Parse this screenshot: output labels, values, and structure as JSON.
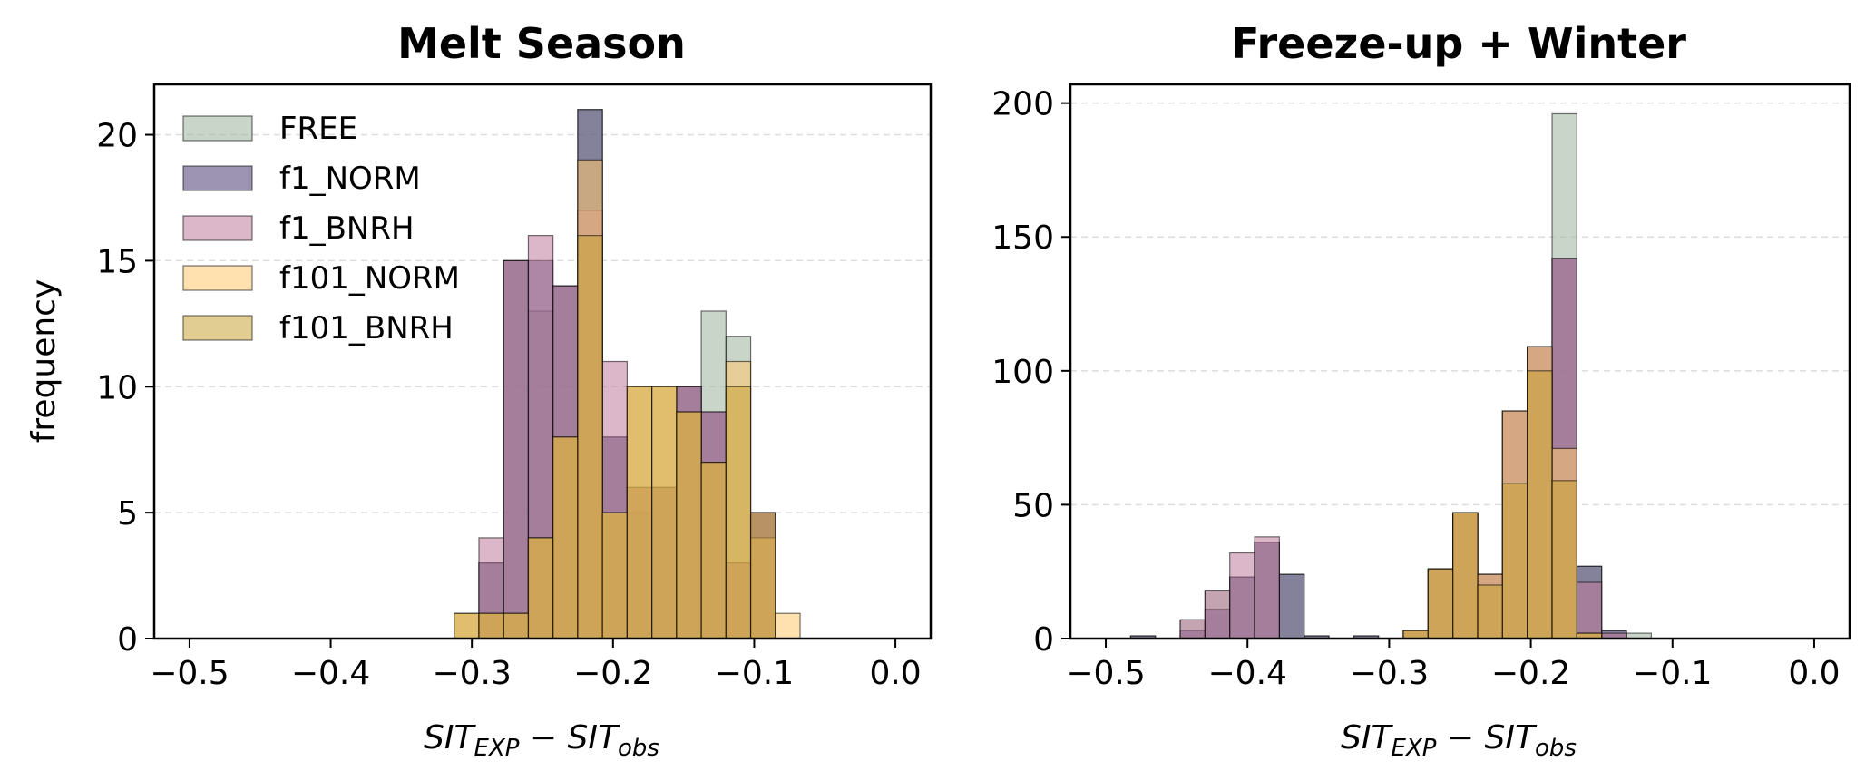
{
  "chart_data": [
    {
      "type": "bar",
      "title": "Melt Season",
      "ylabel": "frequency",
      "xlabel": "SIT_EXP − SIT_obs",
      "xlim": [
        -0.525,
        0.025
      ],
      "ylim": [
        0,
        22
      ],
      "xticks": [
        -0.5,
        -0.4,
        -0.3,
        -0.2,
        -0.1,
        0.0
      ],
      "xtick_labels": [
        "−0.5",
        "−0.4",
        "−0.3",
        "−0.2",
        "−0.1",
        "0.0"
      ],
      "yticks": [
        0,
        5,
        10,
        15,
        20
      ],
      "ytick_labels": [
        "0",
        "5",
        "10",
        "15",
        "20"
      ],
      "grid": "y-dashed",
      "legend": "top-left",
      "bin_width": 0.0175,
      "bin_starts": [
        -0.3125,
        -0.295,
        -0.2775,
        -0.26,
        -0.2425,
        -0.225,
        -0.2075,
        -0.19,
        -0.1725,
        -0.155,
        -0.1375,
        -0.12,
        -0.1025,
        -0.085
      ],
      "series": [
        {
          "name": "FREE",
          "color": "#9fb39f",
          "values": [
            0,
            3,
            15,
            13,
            14,
            21,
            8,
            5,
            6,
            10,
            13,
            12,
            5,
            0
          ]
        },
        {
          "name": "f1_NORM",
          "color": "#4a3d73",
          "values": [
            0,
            3,
            15,
            15,
            14,
            21,
            8,
            6,
            6,
            10,
            9,
            3,
            5,
            0
          ]
        },
        {
          "name": "f1_BNRH",
          "color": "#c07b9d",
          "values": [
            0,
            4,
            15,
            16,
            14,
            17,
            11,
            6,
            6,
            10,
            9,
            3,
            5,
            0
          ]
        },
        {
          "name": "f101_NORM",
          "color": "#ffc870",
          "values": [
            1,
            1,
            1,
            4,
            8,
            19,
            5,
            10,
            10,
            9,
            7,
            11,
            4,
            1
          ]
        },
        {
          "name": "f101_BNRH",
          "color": "#c8a336",
          "values": [
            1,
            1,
            1,
            4,
            8,
            16,
            5,
            10,
            10,
            9,
            7,
            10,
            5,
            0
          ]
        }
      ]
    },
    {
      "type": "bar",
      "title": "Freeze-up + Winter",
      "ylabel": "",
      "xlabel": "SIT_EXP − SIT_obs",
      "xlim": [
        -0.525,
        0.025
      ],
      "ylim": [
        0,
        207
      ],
      "xticks": [
        -0.5,
        -0.4,
        -0.3,
        -0.2,
        -0.1,
        0.0
      ],
      "xtick_labels": [
        "−0.5",
        "−0.4",
        "−0.3",
        "−0.2",
        "−0.1",
        "0.0"
      ],
      "yticks": [
        0,
        50,
        100,
        150,
        200
      ],
      "ytick_labels": [
        "0",
        "50",
        "100",
        "150",
        "200"
      ],
      "grid": "y-dashed",
      "bin_width": 0.0175,
      "bin_starts": [
        -0.4825,
        -0.465,
        -0.4475,
        -0.43,
        -0.4125,
        -0.395,
        -0.3775,
        -0.36,
        -0.3425,
        -0.325,
        -0.3075,
        -0.29,
        -0.2725,
        -0.255,
        -0.2375,
        -0.22,
        -0.2025,
        -0.185,
        -0.1675,
        -0.15,
        -0.1325
      ],
      "series": [
        {
          "name": "FREE",
          "color": "#9fb39f",
          "values": [
            1,
            0,
            7,
            18,
            23,
            36,
            24,
            1,
            0,
            1,
            0,
            3,
            26,
            47,
            24,
            85,
            109,
            196,
            27,
            3,
            2
          ]
        },
        {
          "name": "f1_NORM",
          "color": "#4a3d73",
          "values": [
            1,
            0,
            3,
            11,
            23,
            36,
            24,
            1,
            0,
            1,
            0,
            3,
            26,
            47,
            24,
            85,
            109,
            142,
            27,
            3,
            0
          ]
        },
        {
          "name": "f1_BNRH",
          "color": "#c07b9d",
          "values": [
            0,
            0,
            7,
            18,
            32,
            38,
            0,
            0,
            0,
            0,
            0,
            3,
            26,
            47,
            24,
            85,
            109,
            142,
            21,
            2,
            0
          ]
        },
        {
          "name": "f101_NORM",
          "color": "#ffc870",
          "values": [
            0,
            0,
            0,
            0,
            0,
            0,
            0,
            0,
            0,
            0,
            0,
            3,
            26,
            47,
            24,
            85,
            109,
            71,
            2,
            0,
            0
          ]
        },
        {
          "name": "f101_BNRH",
          "color": "#c8a336",
          "values": [
            0,
            0,
            0,
            0,
            0,
            0,
            0,
            0,
            0,
            0,
            0,
            3,
            26,
            47,
            20,
            58,
            100,
            59,
            2,
            0,
            0
          ]
        }
      ]
    }
  ]
}
